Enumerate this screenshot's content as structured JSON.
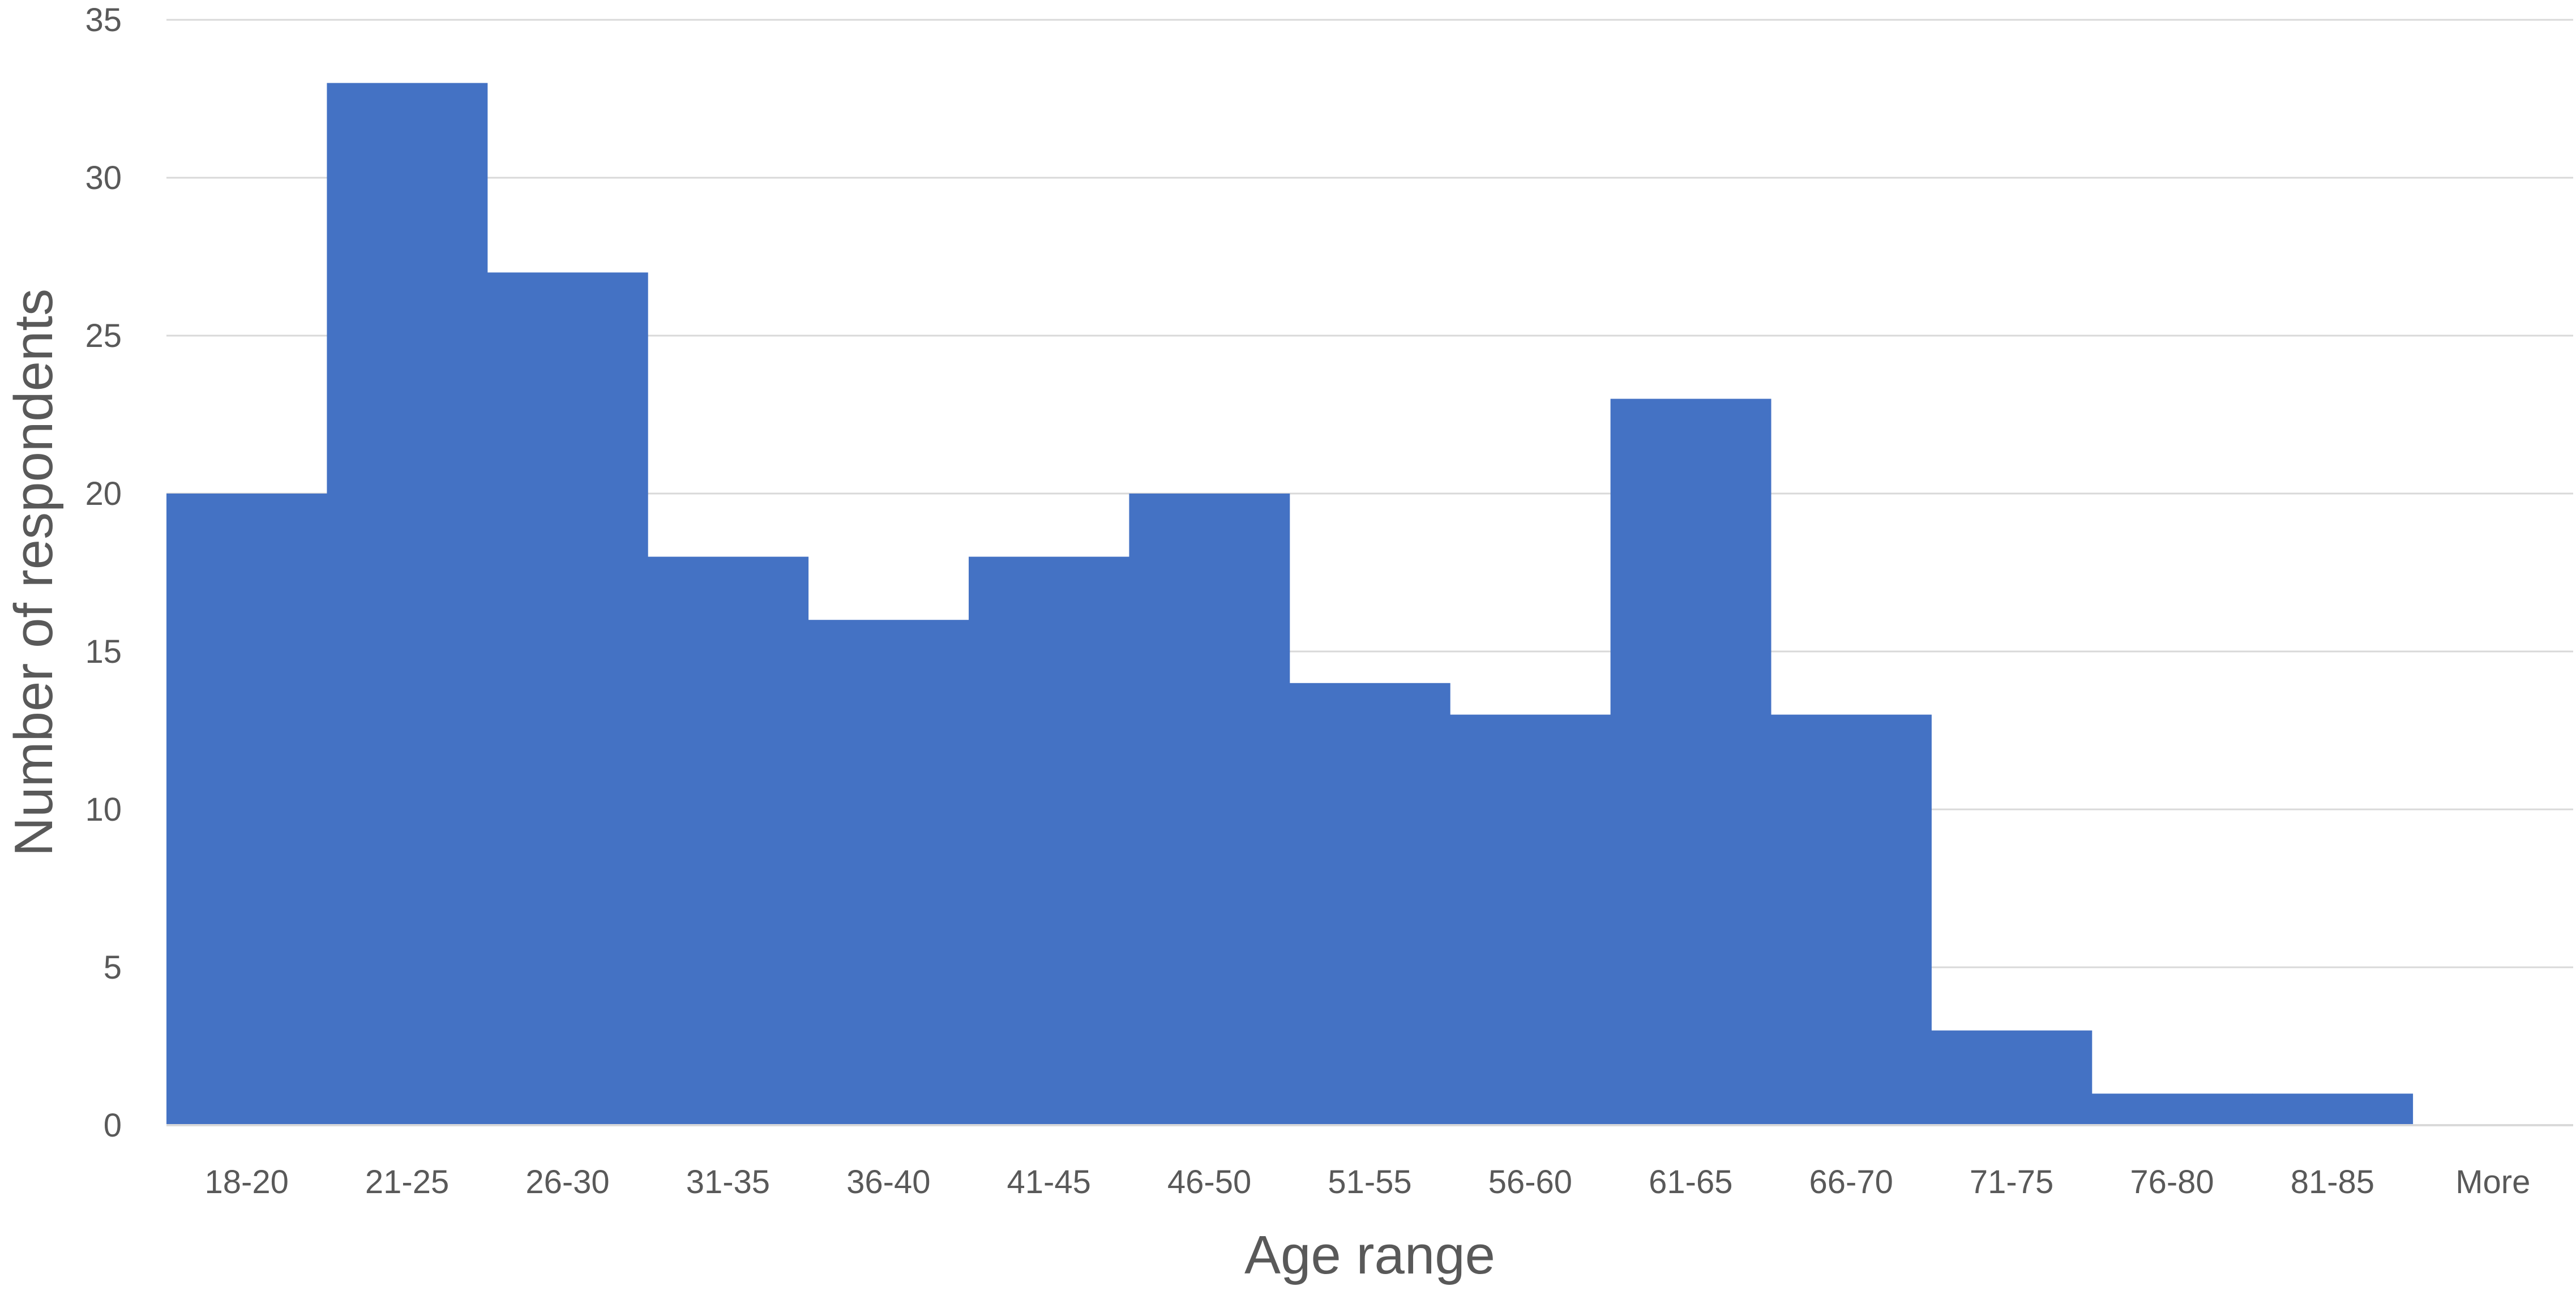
{
  "chart_data": {
    "type": "bar",
    "title": "",
    "xlabel": "Age range",
    "ylabel": "Number of respondents",
    "categories": [
      "18-20",
      "21-25",
      "26-30",
      "31-35",
      "36-40",
      "41-45",
      "46-50",
      "51-55",
      "56-60",
      "61-65",
      "66-70",
      "71-75",
      "76-80",
      "81-85",
      "More"
    ],
    "values": [
      20,
      33,
      27,
      18,
      16,
      18,
      20,
      14,
      13,
      23,
      13,
      3,
      1,
      1,
      0
    ],
    "ylim": [
      0,
      35
    ],
    "yticks": [
      0,
      5,
      10,
      15,
      20,
      25,
      30,
      35
    ],
    "ytick_labels": [
      "0",
      "5",
      "10",
      "15",
      "20",
      "25",
      "30",
      "35"
    ],
    "grid": true,
    "legend": "none",
    "colors": {
      "bar": "#4472C4",
      "grid": "#D9D9D9",
      "text": "#595959"
    }
  }
}
